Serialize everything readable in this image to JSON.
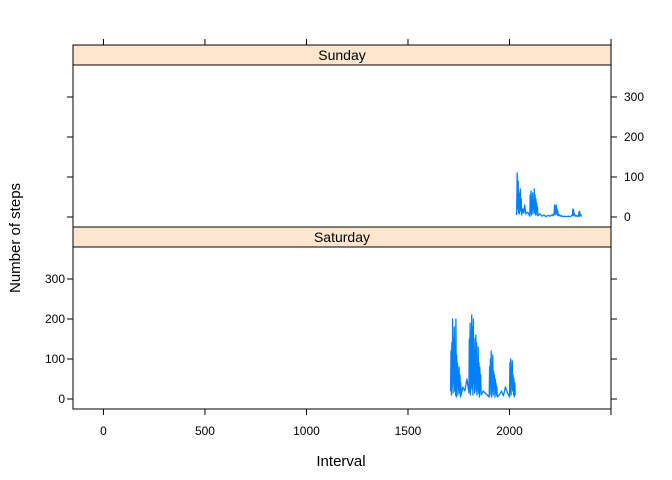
{
  "chart_data": {
    "type": "line",
    "xlabel": "Interval",
    "ylabel": "Number of steps",
    "xlim": [
      -150,
      2500
    ],
    "ylim": [
      -25,
      380
    ],
    "x_ticks": [
      0,
      500,
      1000,
      1500,
      2000
    ],
    "y_ticks": [
      0,
      100,
      200,
      300
    ],
    "colors": {
      "line": "#0080ff",
      "strip_bg": "#ffe5cc",
      "frame": "#000000"
    },
    "panels": [
      {
        "name": "Sunday",
        "series": [
          {
            "x": [
              2035,
              2038,
              2041,
              2043,
              2045,
              2047,
              2050,
              2053,
              2056,
              2058,
              2060,
              2065,
              2070,
              2075,
              2080,
              2090,
              2100,
              2102,
              2104,
              2106,
              2108,
              2110,
              2112,
              2114,
              2116,
              2118,
              2120,
              2122,
              2124,
              2126,
              2128,
              2130,
              2132,
              2134,
              2136,
              2138,
              2140,
              2150,
              2160,
              2170,
              2180,
              2190,
              2200,
              2210,
              2215,
              2220,
              2222,
              2224,
              2226,
              2228,
              2230,
              2232,
              2234,
              2236,
              2238,
              2240,
              2245,
              2250,
              2255,
              2260,
              2270,
              2280,
              2290,
              2300,
              2305,
              2310,
              2312,
              2314,
              2316,
              2318,
              2320,
              2325,
              2330,
              2335,
              2340,
              2342,
              2344,
              2346,
              2348,
              2350,
              2355
            ],
            "y": [
              5,
              110,
              20,
              90,
              10,
              60,
              8,
              70,
              15,
              45,
              5,
              20,
              10,
              30,
              8,
              12,
              2,
              55,
              10,
              65,
              5,
              50,
              15,
              60,
              8,
              40,
              20,
              70,
              10,
              55,
              5,
              45,
              12,
              35,
              5,
              25,
              3,
              8,
              2,
              5,
              1,
              4,
              2,
              6,
              3,
              10,
              30,
              5,
              25,
              8,
              30,
              10,
              20,
              5,
              15,
              3,
              6,
              2,
              4,
              1,
              2,
              1,
              2,
              1,
              3,
              5,
              20,
              3,
              18,
              5,
              8,
              2,
              4,
              1,
              3,
              12,
              2,
              14,
              3,
              6,
              1
            ]
          }
        ]
      },
      {
        "name": "Saturday",
        "series": [
          {
            "x": [
              1710,
              1712,
              1714,
              1716,
              1718,
              1720,
              1722,
              1724,
              1726,
              1728,
              1730,
              1732,
              1734,
              1736,
              1738,
              1740,
              1742,
              1744,
              1746,
              1748,
              1750,
              1752,
              1754,
              1756,
              1758,
              1760,
              1762,
              1770,
              1780,
              1790,
              1800,
              1802,
              1804,
              1806,
              1808,
              1810,
              1812,
              1814,
              1816,
              1818,
              1820,
              1822,
              1824,
              1826,
              1828,
              1830,
              1832,
              1834,
              1836,
              1838,
              1840,
              1842,
              1844,
              1846,
              1848,
              1850,
              1852,
              1854,
              1856,
              1858,
              1860,
              1870,
              1880,
              1890,
              1900,
              1902,
              1904,
              1906,
              1908,
              1910,
              1912,
              1914,
              1916,
              1918,
              1920,
              1922,
              1924,
              1926,
              1928,
              1930,
              1932,
              1934,
              1936,
              1938,
              1940,
              1950,
              1960,
              1970,
              1980,
              1990,
              2000,
              2002,
              2004,
              2006,
              2008,
              2010,
              2012,
              2014,
              2016,
              2018,
              2020,
              2022,
              2024,
              2026,
              2028
            ],
            "y": [
              20,
              120,
              10,
              140,
              30,
              200,
              15,
              150,
              40,
              180,
              20,
              130,
              10,
              200,
              5,
              110,
              30,
              90,
              10,
              70,
              25,
              80,
              15,
              60,
              5,
              40,
              10,
              30,
              20,
              50,
              15,
              150,
              20,
              190,
              10,
              170,
              30,
              210,
              25,
              180,
              10,
              200,
              40,
              150,
              15,
              120,
              30,
              160,
              20,
              140,
              10,
              100,
              25,
              130,
              15,
              90,
              5,
              80,
              20,
              60,
              10,
              20,
              15,
              10,
              5,
              80,
              10,
              100,
              30,
              120,
              5,
              90,
              20,
              110,
              10,
              70,
              25,
              60,
              5,
              50,
              15,
              40,
              10,
              30,
              5,
              10,
              20,
              8,
              30,
              15,
              5,
              90,
              15,
              100,
              10,
              80,
              25,
              95,
              20,
              60,
              10,
              50,
              5,
              40,
              10
            ]
          }
        ]
      }
    ]
  }
}
